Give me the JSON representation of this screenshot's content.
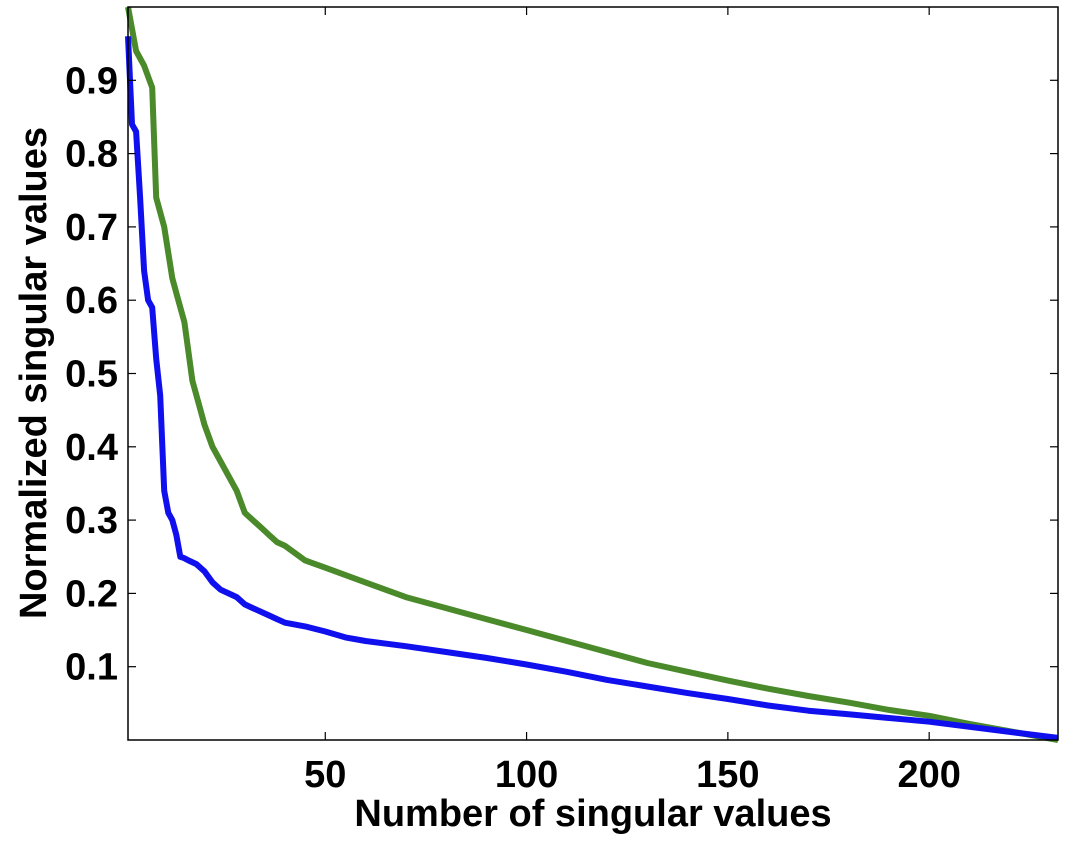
{
  "chart_data": {
    "type": "line",
    "title": "",
    "xlabel": "Number of singular values",
    "ylabel": "Normalized singular values",
    "xlim": [
      1,
      232
    ],
    "ylim": [
      0.0,
      1.0
    ],
    "grid": false,
    "legend": "none",
    "xticks": [
      50,
      100,
      150,
      200
    ],
    "xtick_labels": [
      "50",
      "100",
      "150",
      "200"
    ],
    "yticks": [
      0.1,
      0.2,
      0.3,
      0.4,
      0.5,
      0.6,
      0.7,
      0.8,
      0.9
    ],
    "ytick_labels": [
      "0.1",
      "0.2",
      "0.3",
      "0.4",
      "0.5",
      "0.6",
      "0.7",
      "0.8",
      "0.9"
    ],
    "series": [
      {
        "color": "#4a8a2a",
        "x": [
          1,
          3,
          5,
          7,
          8,
          10,
          12,
          13,
          15,
          16,
          17,
          19,
          20,
          22,
          24,
          26,
          28,
          30,
          32,
          34,
          36,
          38,
          40,
          45,
          50,
          55,
          60,
          70,
          80,
          90,
          100,
          110,
          120,
          130,
          140,
          150,
          160,
          170,
          180,
          190,
          200,
          210,
          220,
          232
        ],
        "y": [
          1.0,
          0.94,
          0.92,
          0.89,
          0.74,
          0.7,
          0.63,
          0.61,
          0.57,
          0.53,
          0.49,
          0.45,
          0.43,
          0.4,
          0.38,
          0.36,
          0.34,
          0.31,
          0.3,
          0.29,
          0.28,
          0.27,
          0.265,
          0.245,
          0.235,
          0.225,
          0.215,
          0.195,
          0.18,
          0.165,
          0.15,
          0.135,
          0.12,
          0.105,
          0.093,
          0.081,
          0.07,
          0.06,
          0.051,
          0.041,
          0.033,
          0.022,
          0.012,
          0.0
        ]
      },
      {
        "color": "#1010ee",
        "x": [
          1,
          2,
          3,
          4,
          5,
          6,
          7,
          8,
          9,
          10,
          11,
          12,
          13,
          14,
          15,
          16,
          18,
          20,
          22,
          24,
          26,
          28,
          30,
          32,
          34,
          36,
          38,
          40,
          45,
          50,
          55,
          60,
          70,
          80,
          90,
          100,
          110,
          120,
          130,
          140,
          150,
          160,
          170,
          180,
          190,
          200,
          210,
          220,
          232
        ],
        "y": [
          0.96,
          0.84,
          0.83,
          0.74,
          0.64,
          0.6,
          0.59,
          0.52,
          0.47,
          0.34,
          0.31,
          0.3,
          0.28,
          0.25,
          0.248,
          0.245,
          0.24,
          0.23,
          0.215,
          0.205,
          0.2,
          0.195,
          0.185,
          0.18,
          0.175,
          0.17,
          0.165,
          0.16,
          0.155,
          0.148,
          0.14,
          0.135,
          0.128,
          0.12,
          0.112,
          0.103,
          0.093,
          0.082,
          0.073,
          0.064,
          0.056,
          0.047,
          0.04,
          0.035,
          0.03,
          0.025,
          0.018,
          0.011,
          0.003
        ]
      }
    ]
  }
}
